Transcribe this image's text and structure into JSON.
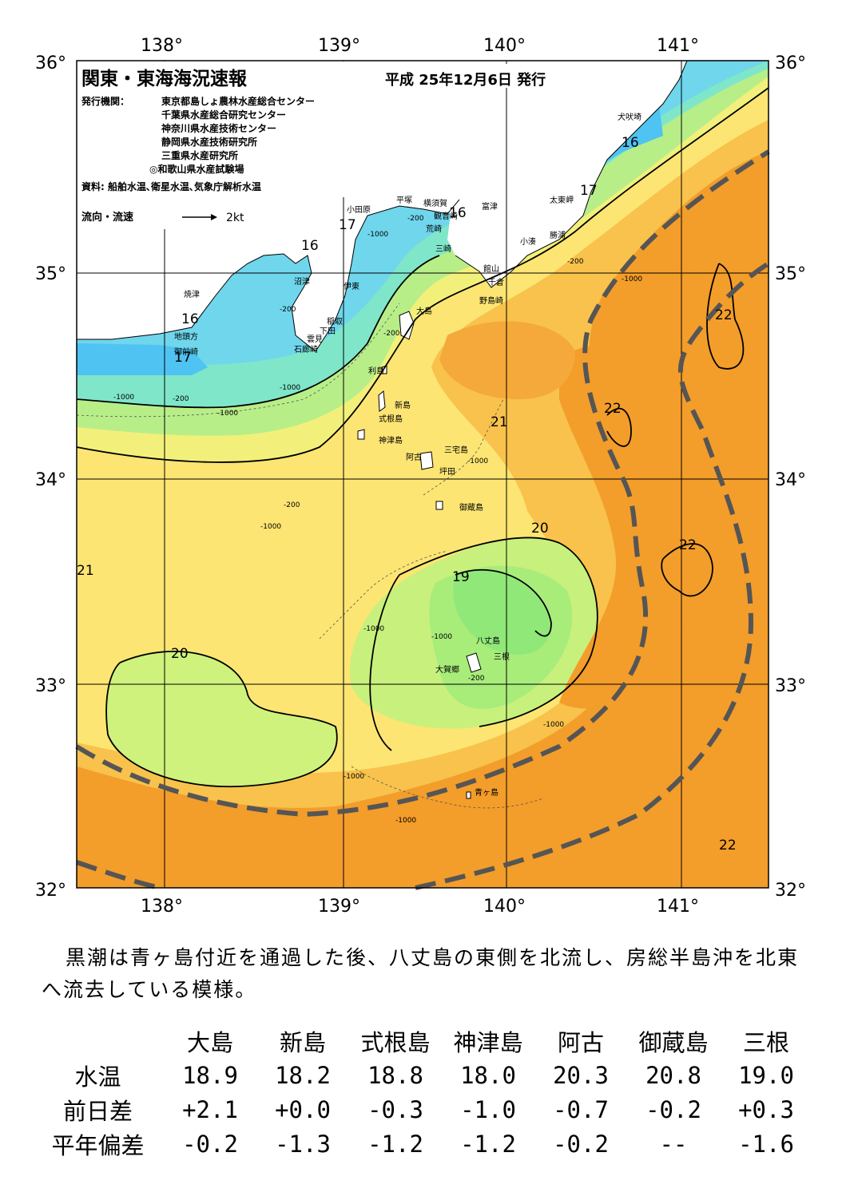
{
  "header": {
    "title": "関東・東海海況速報",
    "date": "平成 25年12月6日 発行",
    "issuer_label": "発行機関：",
    "issuers": [
      "東京都島しょ農林水産総合センター",
      "千葉県水産総合研究センター",
      "神奈川県水産技術センター",
      "静岡県水産技術研究所",
      "三重県水産研究所",
      "◎和歌山県水産試験場"
    ],
    "source": "資料: 船舶水温､衛星水温､気象庁解析水温",
    "legend_label": "流向・流速",
    "legend_value": "2kt"
  },
  "axes": {
    "lon_labels": [
      "138°",
      "139°",
      "140°",
      "141°"
    ],
    "lat_labels": [
      "36°",
      "35°",
      "34°",
      "33°",
      "32°"
    ]
  },
  "places": {
    "inubozaki": "犬吠埼",
    "taitomisaki": "太東岬",
    "katsuura": "勝浦",
    "kominato": "小湊",
    "futtsu": "富津",
    "kannonzaki": "観音崎",
    "yokosuka": "横須賀",
    "hiratsuka": "平塚",
    "odawara": "小田原",
    "tsurugizaki": "荒崎",
    "misaki": "三崎",
    "tateyama": "館山",
    "chikura": "千倉",
    "nojimazaki": "野島崎",
    "numazu": "沼津",
    "ito": "伊東",
    "yaizu": "焼津",
    "jitogata": "地頭方",
    "omaezaki": "御前崎",
    "inatori": "稲取",
    "shimoda": "下田",
    "kumomi": "雲見",
    "irozaki": "石廊崎",
    "oshima": "大島",
    "toshima": "利島",
    "niijima": "新島",
    "shikinejima": "式根島",
    "kozushima": "神津島",
    "miyakejima": "三宅島",
    "ako": "阿古",
    "tsubota": "坪田",
    "mikurajima": "御蔵島",
    "hachijojima": "八丈島",
    "mine": "三根",
    "okago": "大賀郷",
    "aogashima": "青ヶ島"
  },
  "isotherm_labels": [
    "16",
    "16",
    "16",
    "16",
    "17",
    "17",
    "17",
    "19",
    "20",
    "20",
    "21",
    "21",
    "22",
    "22",
    "22",
    "22"
  ],
  "depth_labels": [
    "-200",
    "-1000"
  ],
  "colors": {
    "t15": "#4fc3f2",
    "t16": "#6fd6ec",
    "t17": "#7fe6c9",
    "t18": "#d8f080",
    "t19": "#90e878",
    "t20": "#cff27c",
    "t21": "#fce573",
    "t21b": "#f8c24c",
    "t22": "#f4a93a",
    "t22b": "#f39d2a",
    "kuroshio": "#555555"
  },
  "summary": "黒潮は青ヶ島付近を通過した後、八丈島の東側を北流し、房総半島沖を北東へ流去している模様。",
  "table": {
    "stations": [
      "大島",
      "新島",
      "式根島",
      "神津島",
      "阿古",
      "御蔵島",
      "三根"
    ],
    "rows": [
      {
        "label": "水温",
        "values": [
          "18.9",
          "18.2",
          "18.8",
          "18.0",
          "20.3",
          "20.8",
          "19.0"
        ]
      },
      {
        "label": "前日差",
        "values": [
          "+2.1",
          "+0.0",
          "-0.3",
          "-1.0",
          "-0.7",
          "-0.2",
          "+0.3"
        ]
      },
      {
        "label": "平年偏差",
        "values": [
          "-0.2",
          "-1.3",
          "-1.2",
          "-1.2",
          "-0.2",
          "--",
          "-1.6"
        ]
      }
    ]
  }
}
